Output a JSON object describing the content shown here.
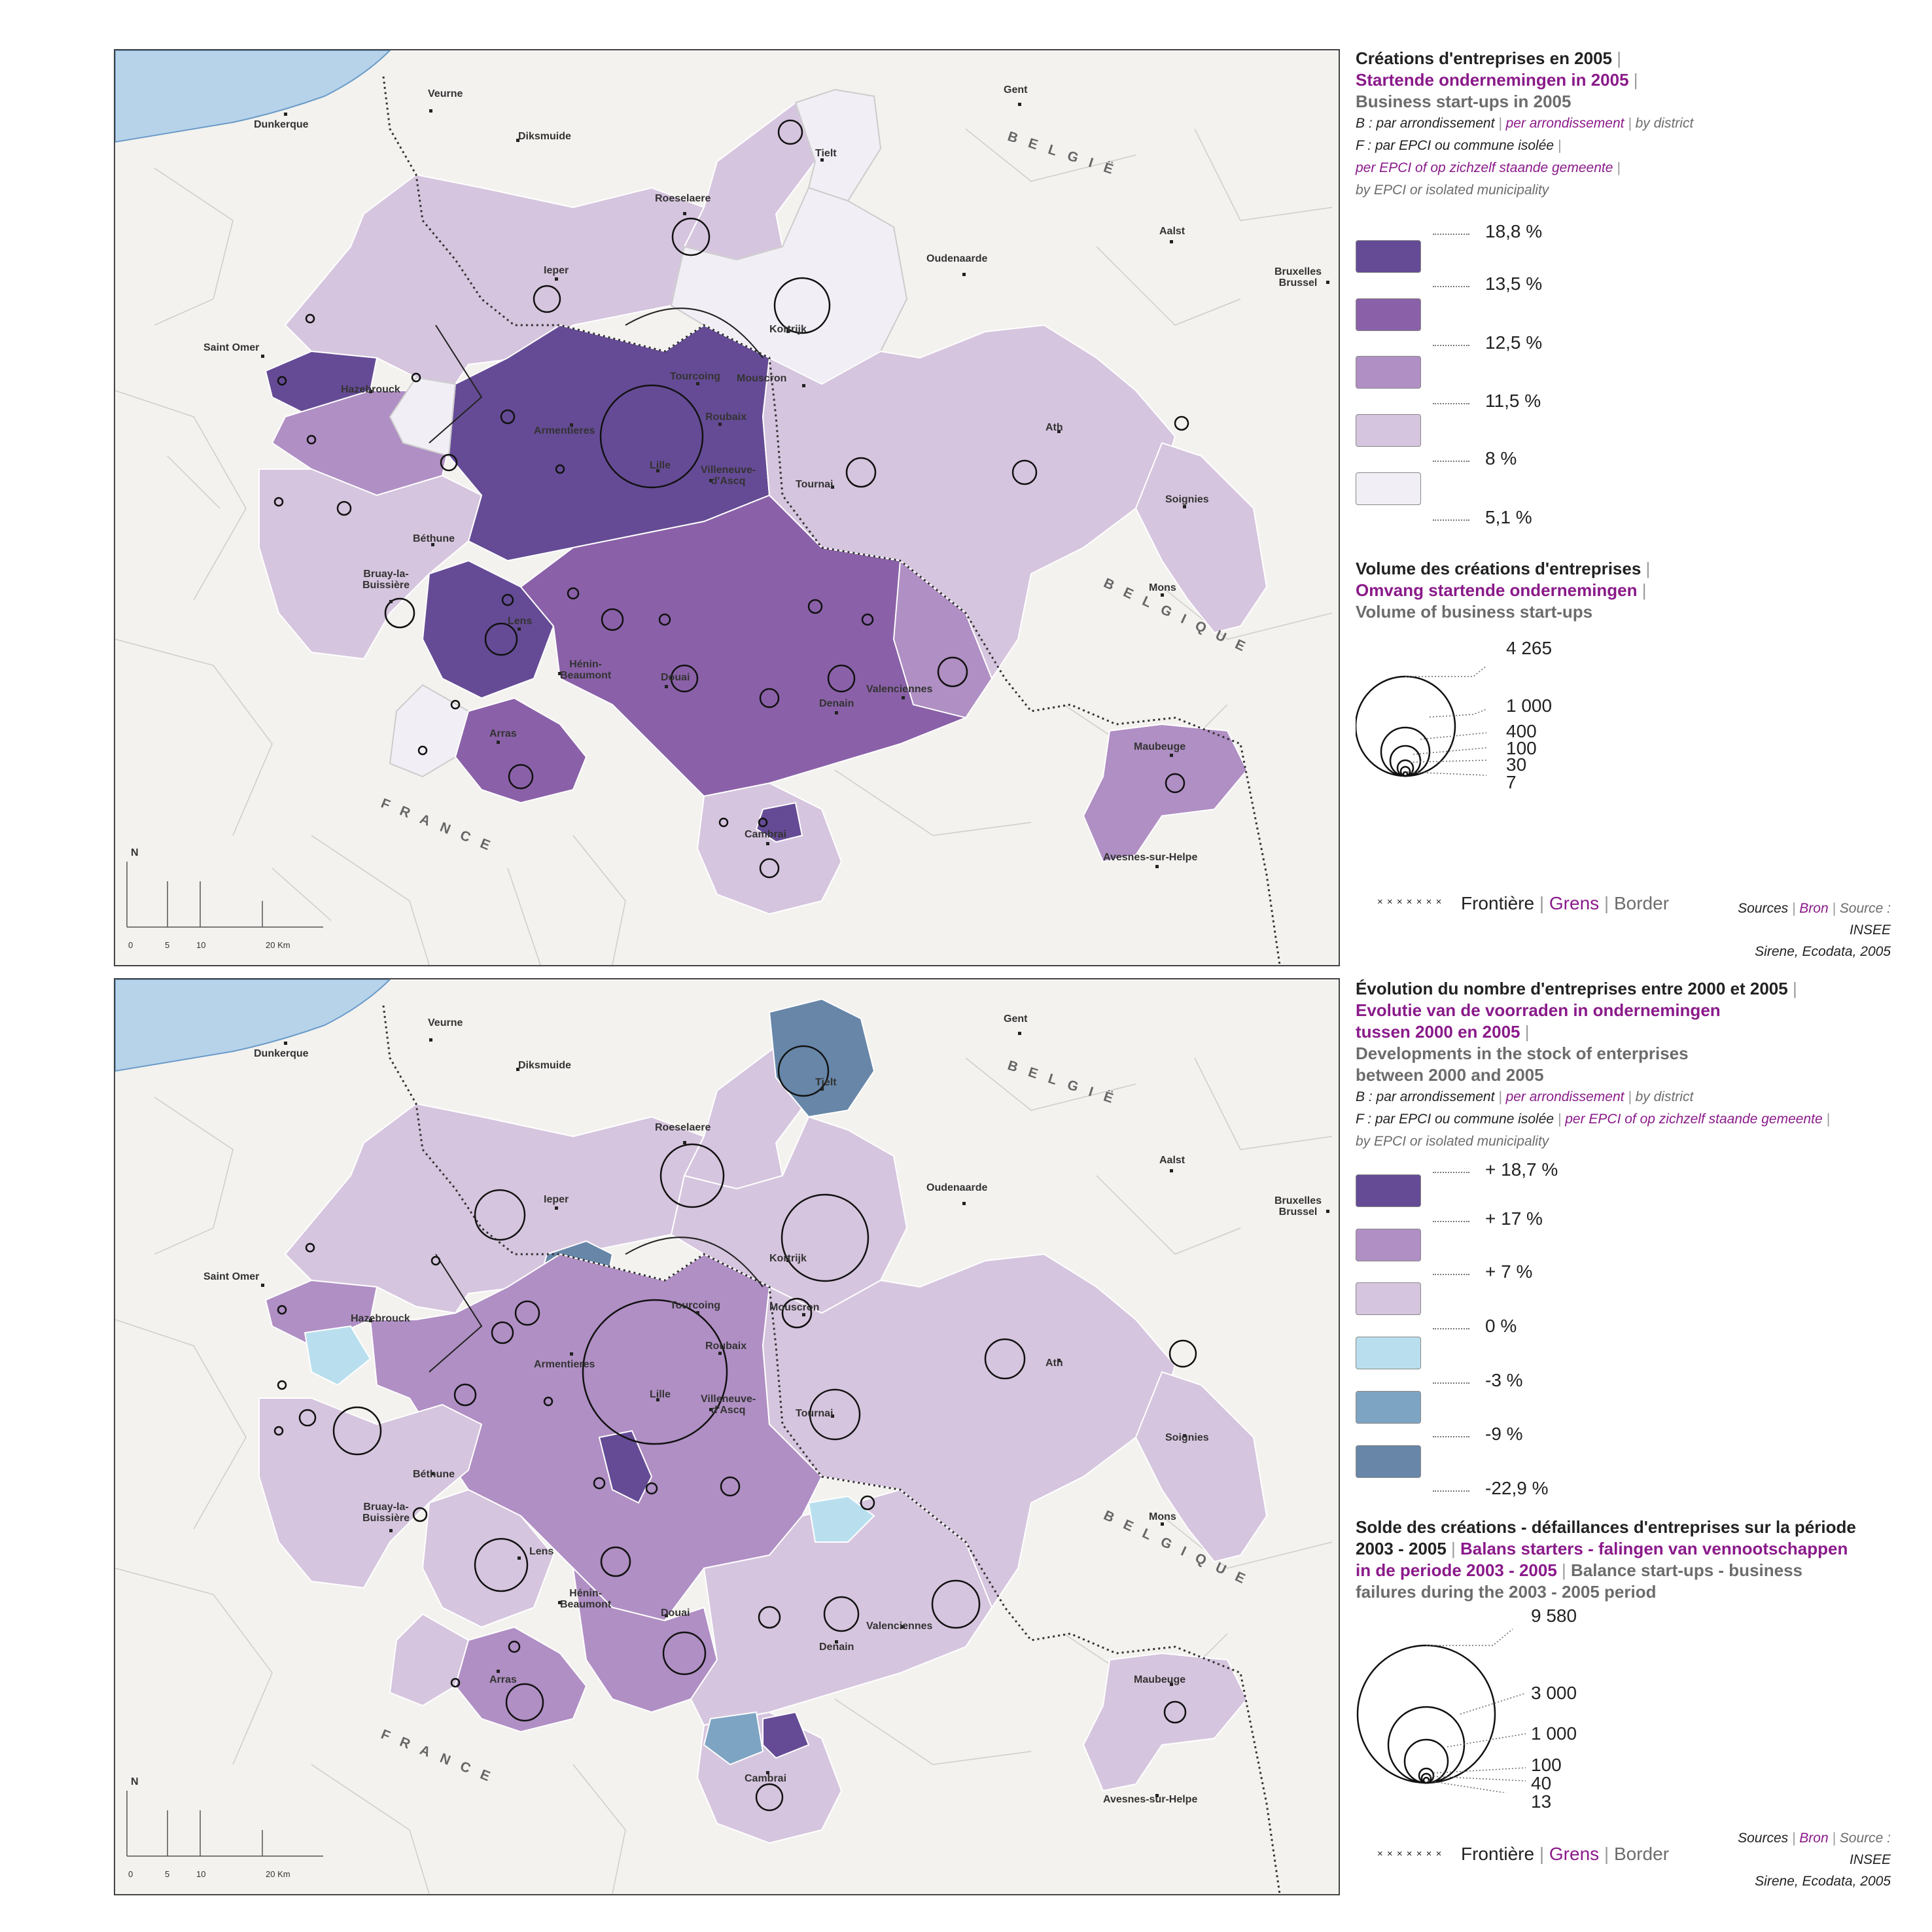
{
  "map_places": {
    "dunkerque": "Dunkerque",
    "veurne": "Veurne",
    "diksmuide": "Diksmuide",
    "gent": "Gent",
    "tielt": "Tielt",
    "roeselaere": "Roeselaere",
    "ieper": "Ieper",
    "oudenaarde": "Oudenaarde",
    "aalst": "Aalst",
    "bruxelles": "Bruxelles\nBrussel",
    "saint_omer": "Saint Omer",
    "kortrijk": "Kortrijk",
    "tourcoing": "Tourcoing",
    "mouscron": "Mouscron",
    "hazebrouck": "Hazebrouck",
    "roubaix": "Roubaix",
    "armentieres": "Armentieres",
    "lille": "Lille",
    "villeneuve": "Villeneuve-\nd'Ascq",
    "tournai": "Tournai",
    "ath": "Ath",
    "soignies": "Soignies",
    "bethune": "Béthune",
    "bruay": "Bruay-la-\nBuissière",
    "lens": "Lens",
    "mons": "Mons",
    "henin": "Hénin-\nBeaumont",
    "douai": "Douai",
    "valenciennes": "Valenciennes",
    "denain": "Denain",
    "arras": "Arras",
    "maubeuge": "Maubeuge",
    "cambrai": "Cambrai",
    "avesnes": "Avesnes-sur-Helpe",
    "belgie": "BELGIË",
    "belgique": "BELGIQUE",
    "france": "FRANCE",
    "north": "N",
    "scale": [
      "0",
      "5",
      "10",
      "20 Km"
    ]
  },
  "colors": {
    "c1": "#f1eff5",
    "c2": "#d6c5de",
    "c3": "#b08fc4",
    "c4": "#8a61a8",
    "c5": "#654b95",
    "n1": "#b9dfee",
    "n2": "#7ea4c3",
    "n3": "#6786a8"
  },
  "map1": {
    "title_fr": "Créations d'entreprises en 2005",
    "title_nl": "Startende ondernemingen in 2005",
    "title_en": "Business start-ups in 2005",
    "note_b_fr": "B : par arrondissement",
    "note_b_nl": "per arrondissement",
    "note_b_en": "by district",
    "note_f_fr": "F : par EPCI ou commune isolée",
    "note_f_nl": "per EPCI of op zichzelf staande gemeente",
    "note_f_en": "by EPCI or isolated municipality",
    "classes": [
      "18,8 %",
      "13,5 %",
      "12,5 %",
      "11,5 %",
      "8 %",
      "5,1 %"
    ],
    "class_colors": [
      "#654b95",
      "#8a61a8",
      "#b08fc4",
      "#d6c5de",
      "#f1eff5"
    ],
    "vol_title_fr": "Volume des créations d'entreprises",
    "vol_title_nl": "Omvang startende ondernemingen",
    "vol_title_en": "Volume of business start-ups",
    "circle_values": [
      "4 265",
      "1 000",
      "400",
      "100",
      "30",
      "7"
    ]
  },
  "map2": {
    "title_fr": "Évolution du nombre d'entreprises entre 2000 et 2005",
    "title_nl_1": "Evolutie van de voorraden in ondernemingen",
    "title_nl_2": "tussen 2000 en 2005",
    "title_en_1": "Developments in the stock of enterprises",
    "title_en_2": "between 2000 and 2005",
    "note_b_fr": "B : par arrondissement",
    "note_b_nl": "per arrondissement",
    "note_b_en": "by district",
    "note_f_fr": "F : par EPCI ou commune isolée",
    "note_f_nl": "per EPCI of op zichzelf staande gemeente",
    "note_f_en": "by EPCI or isolated municipality",
    "classes": [
      "+ 18,7 %",
      "+ 17 %",
      "+ 7 %",
      "0 %",
      "-3 %",
      "-9 %",
      "-22,9 %"
    ],
    "class_colors": [
      "#654b95",
      "#b08fc4",
      "#d6c5de",
      "#b9dfee",
      "#7ea4c3",
      "#6786a8"
    ],
    "bal_title_fr_1": "Solde des créations - défaillances d'entreprises sur la période",
    "bal_title_fr_2": "2003 - 2005",
    "bal_title_nl_1": "Balans starters - falingen van vennootschappen",
    "bal_title_nl_2": "in de periode 2003 - 2005",
    "bal_title_en_1": "Balance start-ups - business",
    "bal_title_en_2": "failures during the 2003 - 2005 period",
    "circle_values": [
      "9 580",
      "3 000",
      "1 000",
      "100",
      "40",
      "13"
    ]
  },
  "border_legend": {
    "symbol": "× × × × × × ×",
    "fr": "Frontière",
    "nl": "Grens",
    "en": "Border"
  },
  "sources": {
    "fr": "Sources",
    "nl": "Bron",
    "en": "Source :",
    "line2": "INSEE",
    "line3": "Sirene, Ecodata, 2005"
  }
}
